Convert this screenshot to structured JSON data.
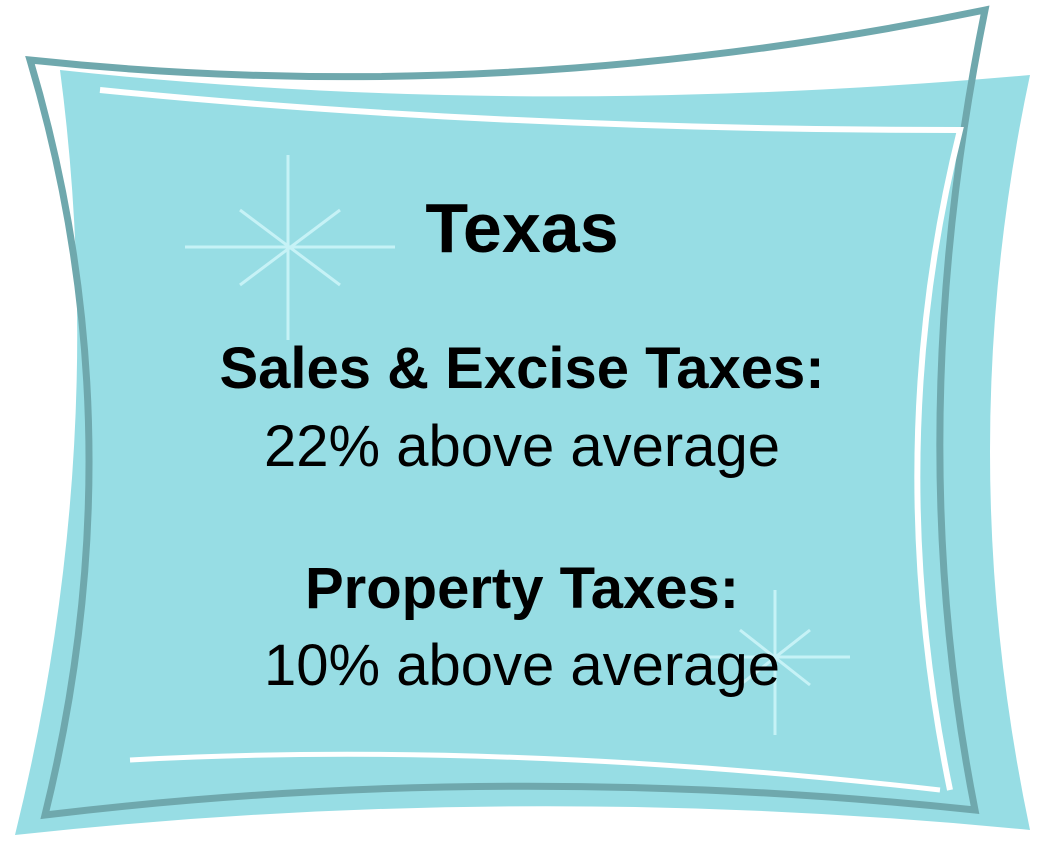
{
  "title": "Texas",
  "items": [
    {
      "heading": "Sales & Excise Taxes:",
      "text": "22% above average"
    },
    {
      "heading": "Property Taxes:",
      "text": "10% above average"
    }
  ]
}
